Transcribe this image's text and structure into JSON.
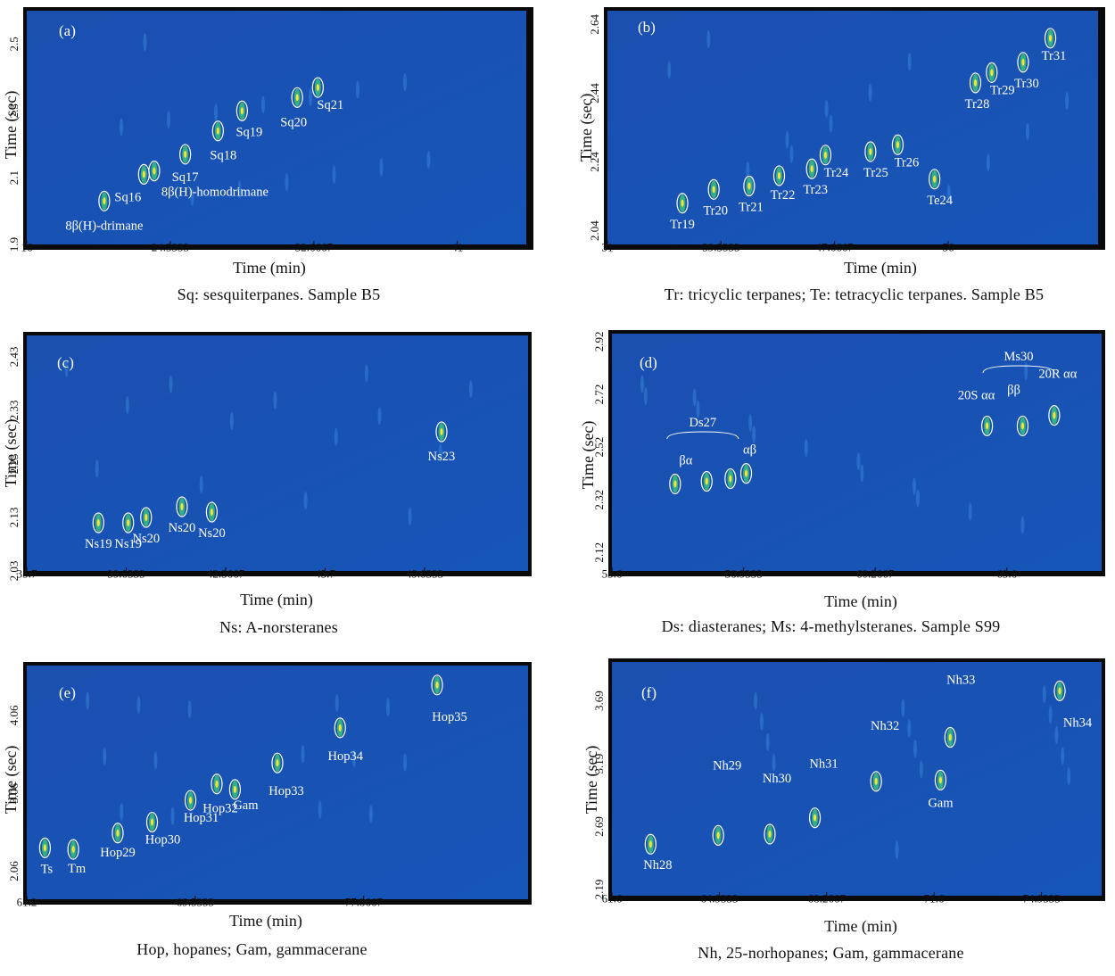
{
  "chart_data": [
    {
      "type": "heatmap",
      "panel_label": "(a)",
      "caption": "Sq: sesquiterpanes. Sample B5",
      "xlabel": "Time (min)",
      "ylabel": "Time (sec)",
      "x_ticks": [
        "16",
        "24.3333",
        "32.6667",
        "41"
      ],
      "y_ticks": [
        "1.9",
        "2.1",
        "2.3",
        "2.5"
      ],
      "xlim": [
        16,
        45
      ],
      "ylim": [
        1.9,
        2.6
      ],
      "peaks": [
        {
          "label": "8β(H)-drimane",
          "x": 20.5,
          "y": 2.03
        },
        {
          "label": "Sq16",
          "x": 22.8,
          "y": 2.11
        },
        {
          "label": "8β(H)-homodrimane",
          "x": 23.4,
          "y": 2.12
        },
        {
          "label": "Sq17",
          "x": 25.2,
          "y": 2.17
        },
        {
          "label": "Sq18",
          "x": 27.1,
          "y": 2.24
        },
        {
          "label": "Sq19",
          "x": 28.5,
          "y": 2.3
        },
        {
          "label": "Sq20",
          "x": 31.7,
          "y": 2.34
        },
        {
          "label": "Sq21",
          "x": 32.9,
          "y": 2.37
        }
      ]
    },
    {
      "type": "heatmap",
      "panel_label": "(b)",
      "caption": "Tr: tricyclic terpanes; Te: tetracyclic terpanes. Sample B5",
      "xlabel": "Time (min)",
      "ylabel": "Time (sec)",
      "x_ticks": [
        "31",
        "39.3333",
        "47.6667",
        "56"
      ],
      "y_ticks": [
        "2.04",
        "2.24",
        "2.44",
        "2.64"
      ],
      "xlim": [
        31,
        67
      ],
      "ylim": [
        2.0,
        2.68
      ],
      "peaks": [
        {
          "label": "Tr19",
          "x": 36.5,
          "y": 2.12
        },
        {
          "label": "Tr20",
          "x": 38.8,
          "y": 2.16
        },
        {
          "label": "Tr21",
          "x": 41.4,
          "y": 2.17
        },
        {
          "label": "Tr22",
          "x": 43.6,
          "y": 2.2
        },
        {
          "label": "Tr23",
          "x": 46.0,
          "y": 2.22
        },
        {
          "label": "Tr24",
          "x": 47.0,
          "y": 2.26
        },
        {
          "label": "Tr25",
          "x": 50.3,
          "y": 2.27
        },
        {
          "label": "Tr26",
          "x": 52.3,
          "y": 2.29
        },
        {
          "label": "Te24",
          "x": 55.0,
          "y": 2.19
        },
        {
          "label": "Tr28",
          "x": 58.0,
          "y": 2.47
        },
        {
          "label": "Tr29",
          "x": 59.2,
          "y": 2.5
        },
        {
          "label": "Tr30",
          "x": 61.5,
          "y": 2.53
        },
        {
          "label": "Tr31",
          "x": 63.5,
          "y": 2.6
        }
      ]
    },
    {
      "type": "heatmap",
      "panel_label": "(c)",
      "caption": "Ns: A-norsteranes",
      "xlabel": "Time (min)",
      "ylabel": "Time (sec)",
      "x_ticks": [
        "35.7",
        "39.0333",
        "42.3667",
        "45.7",
        "49.0333"
      ],
      "y_ticks": [
        "2.03",
        "2.13",
        "2.23",
        "2.33",
        "2.43"
      ],
      "xlim": [
        35.7,
        52.5
      ],
      "ylim": [
        2.03,
        2.47
      ],
      "peaks": [
        {
          "label": "Ns19",
          "x": 38.1,
          "y": 2.12
        },
        {
          "label": "Ns19",
          "x": 39.1,
          "y": 2.12
        },
        {
          "label": "Ns20",
          "x": 39.7,
          "y": 2.13
        },
        {
          "label": "Ns20",
          "x": 40.9,
          "y": 2.15
        },
        {
          "label": "Ns20",
          "x": 41.9,
          "y": 2.14
        },
        {
          "label": "Ns23",
          "x": 49.6,
          "y": 2.29
        }
      ]
    },
    {
      "type": "heatmap",
      "panel_label": "(d)",
      "caption": "Ds: diasteranes; Ms: 4-methylsteranes. Sample S99",
      "xlabel": "Time (min)",
      "ylabel": "Time (sec)",
      "x_ticks": [
        "53.6",
        "56.9333",
        "60.2667",
        "63.6"
      ],
      "y_ticks": [
        "2.12",
        "2.32",
        "2.52",
        "2.72",
        "2.92"
      ],
      "xlim": [
        53.6,
        66.0
      ],
      "ylim": [
        2.05,
        2.95
      ],
      "group_labels": [
        "Ds27",
        "Ms30"
      ],
      "peaks": [
        {
          "label": "βα",
          "x": 55.2,
          "y": 2.38
        },
        {
          "label": "",
          "x": 56.0,
          "y": 2.39
        },
        {
          "label": "",
          "x": 56.6,
          "y": 2.4
        },
        {
          "label": "αβ",
          "x": 57.0,
          "y": 2.42
        },
        {
          "label": "20S αα",
          "x": 63.1,
          "y": 2.6
        },
        {
          "label": "ββ",
          "x": 64.0,
          "y": 2.6
        },
        {
          "label": "20R αα",
          "x": 64.8,
          "y": 2.64
        }
      ]
    },
    {
      "type": "heatmap",
      "panel_label": "(e)",
      "caption": "Hop, hopanes; Gam, gammacerane",
      "xlabel": "Time (min)",
      "ylabel": "Time (sec)",
      "x_ticks": [
        "61.2",
        "69.5333",
        "77.8667"
      ],
      "y_ticks": [
        "2.06",
        "3.06",
        "4.06"
      ],
      "xlim": [
        61.2,
        86.0
      ],
      "ylim": [
        1.7,
        4.7
      ],
      "peaks": [
        {
          "label": "Ts",
          "x": 62.1,
          "y": 2.36
        },
        {
          "label": "Tm",
          "x": 63.5,
          "y": 2.34
        },
        {
          "label": "Hop29",
          "x": 65.7,
          "y": 2.55
        },
        {
          "label": "Hop30",
          "x": 67.4,
          "y": 2.69
        },
        {
          "label": "Hop31",
          "x": 69.3,
          "y": 2.97
        },
        {
          "label": "Hop32",
          "x": 70.6,
          "y": 3.18
        },
        {
          "label": "Gam",
          "x": 71.5,
          "y": 3.11
        },
        {
          "label": "Hop33",
          "x": 73.6,
          "y": 3.45
        },
        {
          "label": "Hop34",
          "x": 76.7,
          "y": 3.9
        },
        {
          "label": "Hop35",
          "x": 81.5,
          "y": 4.45
        }
      ]
    },
    {
      "type": "heatmap",
      "panel_label": "(f)",
      "caption": "Nh, 25-norhopanes; Gam, gammacerane",
      "xlabel": "Time (min)",
      "ylabel": "Time (sec)",
      "x_ticks": [
        "61.6",
        "64.9333",
        "68.2667",
        "71.6",
        "74.9333"
      ],
      "y_ticks": [
        "2.19",
        "2.69",
        "3.19",
        "3.69"
      ],
      "xlim": [
        61.6,
        76.8
      ],
      "ylim": [
        2.14,
        4.0
      ],
      "peaks": [
        {
          "label": "Nh28",
          "x": 62.8,
          "y": 2.55
        },
        {
          "label": "Nh29",
          "x": 64.9,
          "y": 2.62
        },
        {
          "label": "Nh30",
          "x": 66.5,
          "y": 2.63
        },
        {
          "label": "Nh31",
          "x": 67.9,
          "y": 2.76
        },
        {
          "label": "Nh32",
          "x": 69.8,
          "y": 3.05
        },
        {
          "label": "Gam",
          "x": 71.8,
          "y": 3.06
        },
        {
          "label": "Nh33",
          "x": 72.1,
          "y": 3.4
        },
        {
          "label": "Nh34",
          "x": 75.5,
          "y": 3.77
        }
      ]
    }
  ]
}
